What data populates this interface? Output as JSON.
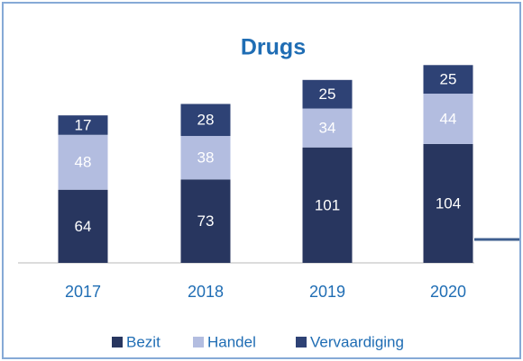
{
  "chart_data": {
    "type": "stacked_bar",
    "title": "Drugs",
    "categories": [
      "2017",
      "2018",
      "2019",
      "2020"
    ],
    "series": [
      {
        "name": "Bezit",
        "color": "#28365f",
        "values": [
          64,
          73,
          101,
          104
        ]
      },
      {
        "name": "Handel",
        "color": "#b3bde0",
        "values": [
          48,
          38,
          34,
          44
        ]
      },
      {
        "name": "Vervaardiging",
        "color": "#2e4275",
        "values": [
          17,
          28,
          25,
          25
        ]
      }
    ],
    "legend": "bottom"
  }
}
